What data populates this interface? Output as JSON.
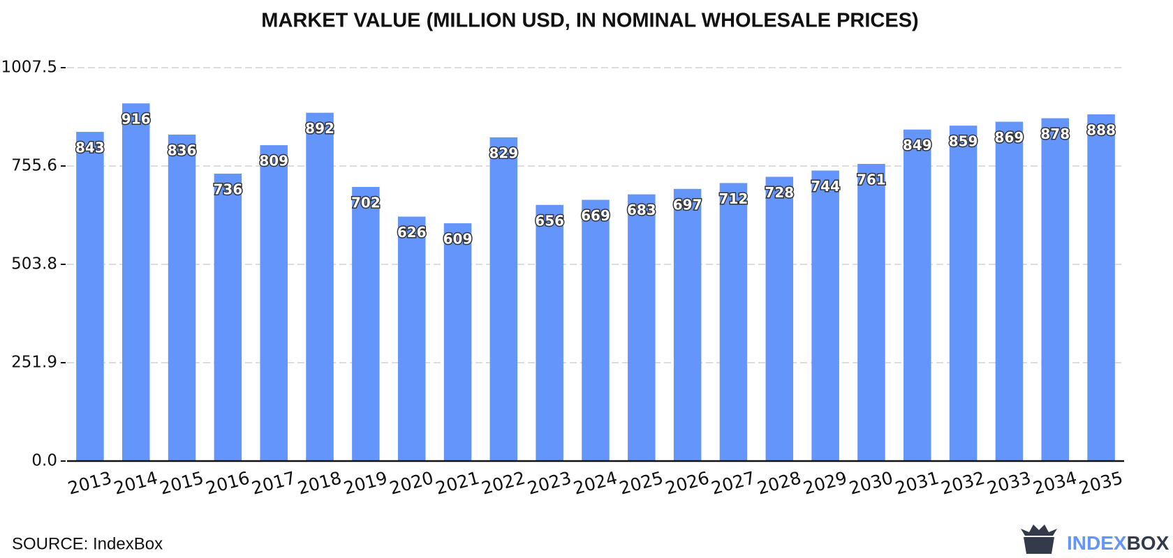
{
  "chart_data": {
    "type": "bar",
    "title": "MARKET VALUE (MILLION USD, IN NOMINAL WHOLESALE PRICES)",
    "categories": [
      "2013",
      "2014",
      "2015",
      "2016",
      "2017",
      "2018",
      "2019",
      "2020",
      "2021",
      "2022",
      "2023",
      "2024",
      "2025",
      "2026",
      "2027",
      "2028",
      "2029",
      "2030",
      "2031",
      "2032",
      "2033",
      "2034",
      "2035"
    ],
    "values": [
      843,
      916,
      836,
      736,
      809,
      892,
      702,
      626,
      609,
      829,
      656,
      669,
      683,
      697,
      712,
      728,
      744,
      761,
      849,
      859,
      869,
      878,
      888
    ],
    "color": "#6495fa",
    "ylim": [
      0,
      1007.5
    ],
    "yticks": [
      {
        "value": 0,
        "label": "0.0"
      },
      251.9,
      503.8,
      755.6,
      {
        "value": 1007.5,
        "label": "1007.5"
      }
    ],
    "grid": true
  },
  "source": "SOURCE: IndexBox",
  "logo": {
    "first": "INDEX",
    "second": "BOX"
  }
}
